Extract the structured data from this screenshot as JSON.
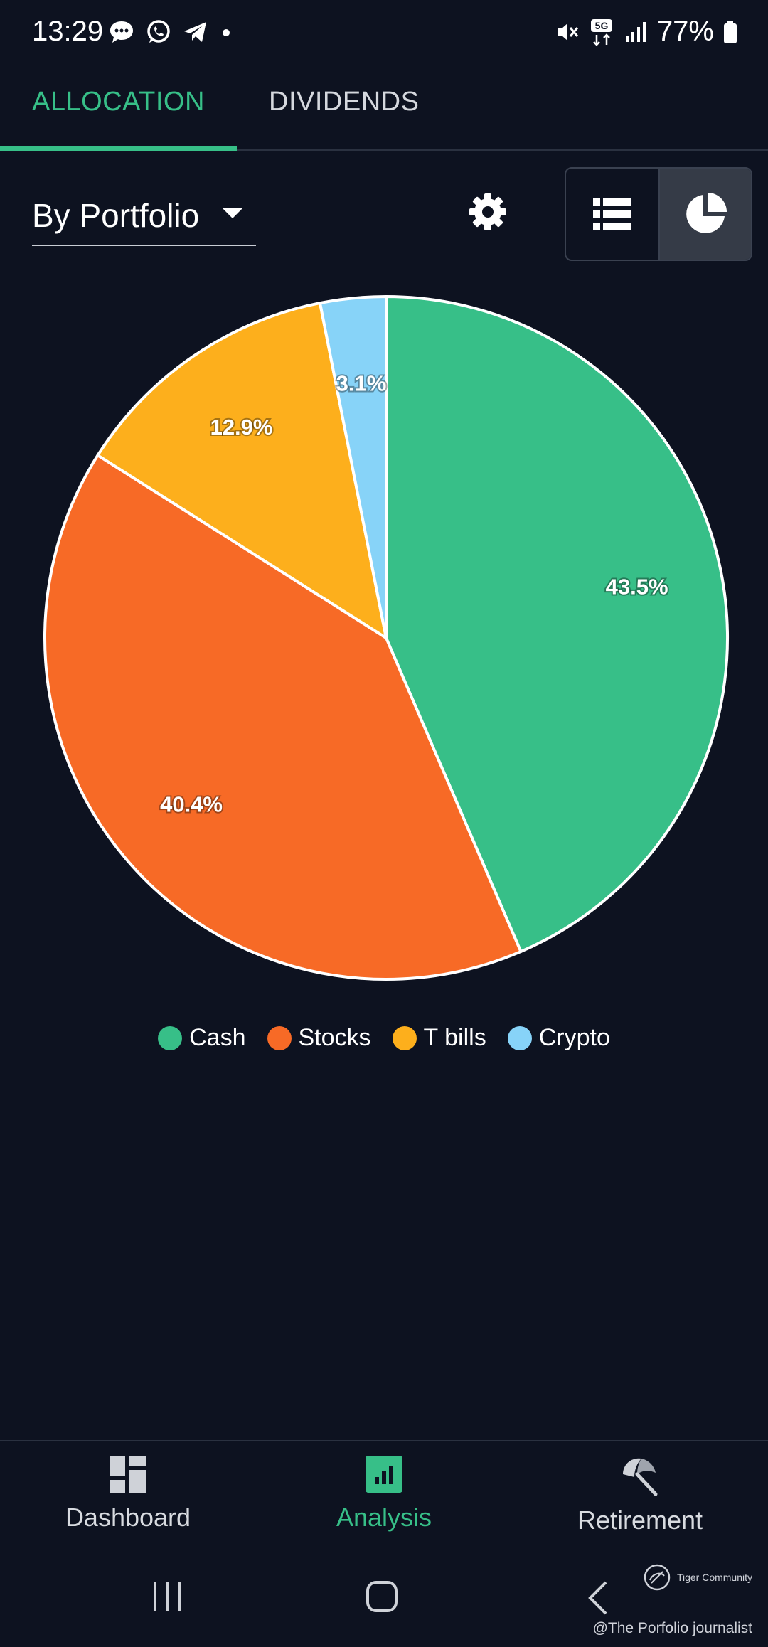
{
  "status_bar": {
    "time": "13:29",
    "battery": "77%",
    "network": "5G"
  },
  "tabs": [
    {
      "label": "ALLOCATION",
      "active": true
    },
    {
      "label": "DIVIDENDS",
      "active": false
    }
  ],
  "controls": {
    "portfolio_select": "By Portfolio"
  },
  "chart_data": {
    "type": "pie",
    "categories": [
      "Cash",
      "Stocks",
      "T bills",
      "Crypto"
    ],
    "values": [
      43.5,
      40.4,
      12.9,
      3.1
    ],
    "labels": [
      "43.5%",
      "40.4%",
      "12.9%",
      "3.1%"
    ],
    "colors": [
      "#37bf88",
      "#f76a26",
      "#fdaf1c",
      "#87d3f8"
    ],
    "legend_placement": "bottom"
  },
  "bottom_nav": [
    {
      "label": "Dashboard",
      "icon": "dashboard-icon",
      "active": false
    },
    {
      "label": "Analysis",
      "icon": "analysis-icon",
      "active": true
    },
    {
      "label": "Retirement",
      "icon": "retirement-icon",
      "active": false
    }
  ],
  "watermark": {
    "community": "Tiger Community",
    "handle": "@The Porfolio journalist"
  }
}
